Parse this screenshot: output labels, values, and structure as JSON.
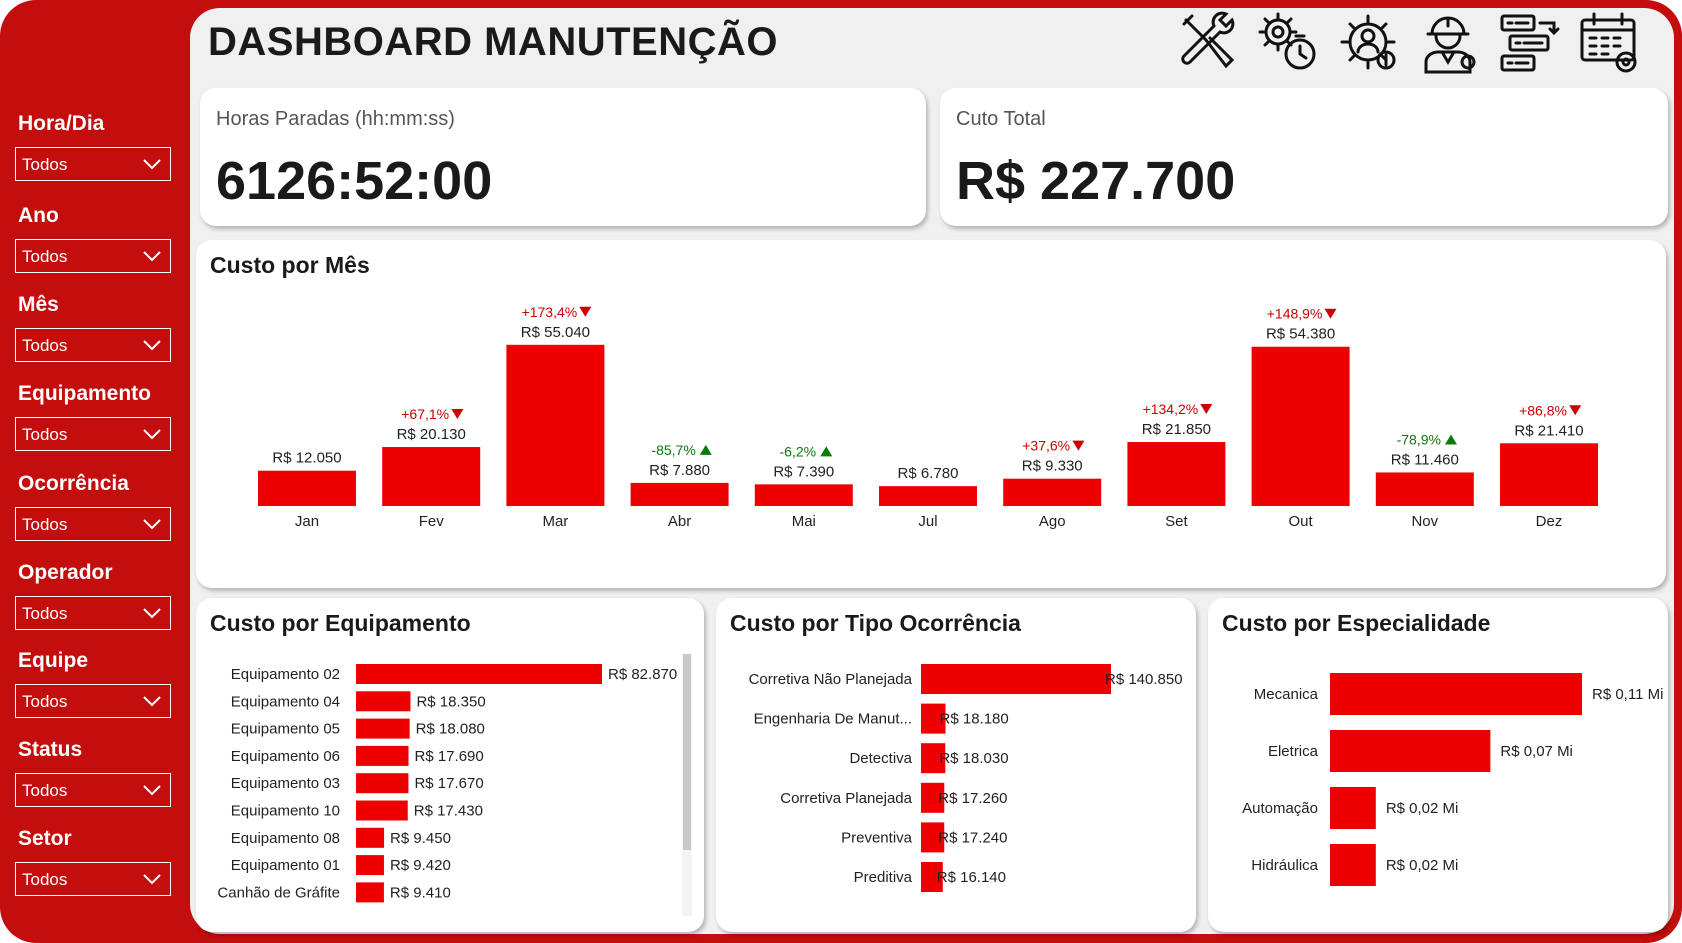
{
  "header": {
    "title": "DASHBOARD MANUTENÇÃO",
    "icons": [
      "tools-icon",
      "maintenance-timer-icon",
      "user-gear-cost-icon",
      "engineer-icon",
      "workflow-icon",
      "calendar-gear-icon"
    ]
  },
  "colors": {
    "frame": "#c40d0d",
    "bar": "#ee0000",
    "up_bad": "#cc0000",
    "down_good": "#0a7a0a"
  },
  "filters": [
    {
      "label": "Hora/Dia",
      "value": "Todos"
    },
    {
      "label": "Ano",
      "value": "Todos"
    },
    {
      "label": "Mês",
      "value": "Todos"
    },
    {
      "label": "Equipamento",
      "value": "Todos"
    },
    {
      "label": "Ocorrência",
      "value": "Todos"
    },
    {
      "label": "Operador",
      "value": "Todos"
    },
    {
      "label": "Equipe",
      "value": "Todos"
    },
    {
      "label": "Status",
      "value": "Todos"
    },
    {
      "label": "Setor",
      "value": "Todos"
    }
  ],
  "kpis": {
    "horas": {
      "label": "Horas Paradas (hh:mm:ss)",
      "value": "6126:52:00"
    },
    "custo": {
      "label": "Cuto Total",
      "value": "R$ 227.700"
    }
  },
  "chart_data": [
    {
      "type": "bar",
      "title": "Custo por Mês",
      "categories": [
        "Jan",
        "Fev",
        "Mar",
        "Abr",
        "Mai",
        "Jul",
        "Ago",
        "Set",
        "Out",
        "Nov",
        "Dez"
      ],
      "values": [
        12050,
        20130,
        55040,
        7880,
        7390,
        6780,
        9330,
        21850,
        54380,
        11460,
        21410
      ],
      "data_labels": [
        "R$ 12.050",
        "R$ 20.130",
        "R$ 55.040",
        "R$ 7.880",
        "R$ 7.390",
        "R$ 6.780",
        "R$ 9.330",
        "R$ 21.850",
        "R$ 54.380",
        "R$ 11.460",
        "R$ 21.410"
      ],
      "variation": [
        "",
        "+67,1%",
        "+173,4%",
        "-85,7%",
        "-6,2%",
        "",
        "+37,6%",
        "+134,2%",
        "+148,9%",
        "-78,9%",
        "+86,8%"
      ],
      "variation_dir": [
        "",
        "down",
        "down",
        "up",
        "up",
        "",
        "down",
        "down",
        "down",
        "up",
        "down"
      ]
    },
    {
      "type": "bar",
      "orientation": "horizontal",
      "title": "Custo por Equipamento",
      "categories": [
        "Equipamento 02",
        "Equipamento 04",
        "Equipamento 05",
        "Equipamento 06",
        "Equipamento 03",
        "Equipamento 10",
        "Equipamento 08",
        "Equipamento 01",
        "Canhão de Gráfite"
      ],
      "values": [
        82870,
        18350,
        18080,
        17690,
        17670,
        17430,
        9450,
        9420,
        9410
      ],
      "data_labels": [
        "R$ 82.870",
        "R$ 18.350",
        "R$ 18.080",
        "R$ 17.690",
        "R$ 17.670",
        "R$ 17.430",
        "R$ 9.450",
        "R$ 9.420",
        "R$ 9.410"
      ]
    },
    {
      "type": "bar",
      "orientation": "horizontal",
      "title": "Custo por Tipo Ocorrência",
      "categories": [
        "Corretiva Não Planejada",
        "Engenharia De Manut...",
        "Detectiva",
        "Corretiva Planejada",
        "Preventiva",
        "Preditiva"
      ],
      "values": [
        140850,
        18180,
        18030,
        17260,
        17240,
        16140
      ],
      "data_labels": [
        "R$ 140.850",
        "R$ 18.180",
        "R$ 18.030",
        "R$ 17.260",
        "R$ 17.240",
        "R$ 16.140"
      ]
    },
    {
      "type": "bar",
      "orientation": "horizontal",
      "title": "Custo por Especialidade",
      "categories": [
        "Mecanica",
        "Eletrica",
        "Automação",
        "Hidráulica"
      ],
      "values": [
        110000,
        70000,
        20000,
        20000
      ],
      "data_labels": [
        "R$ 0,11 Mi",
        "R$ 0,07 Mi",
        "R$ 0,02 Mi",
        "R$ 0,02 Mi"
      ]
    }
  ]
}
